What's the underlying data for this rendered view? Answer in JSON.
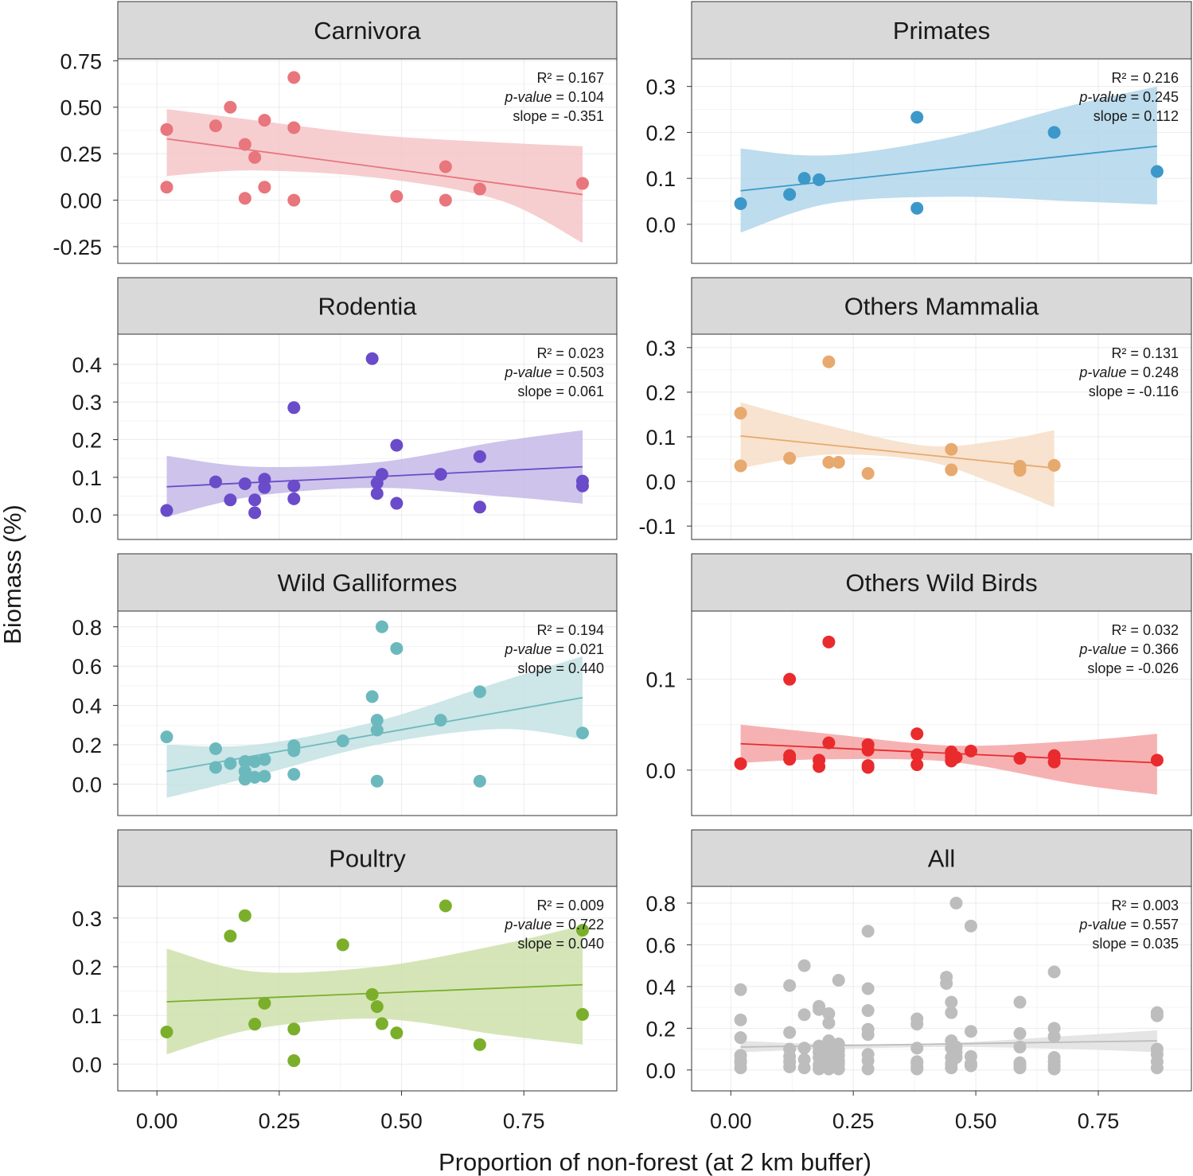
{
  "chart_data": {
    "type": "scatter",
    "xlabel": "Proportion of non-forest (at 2 km buffer)",
    "ylabel": "Biomass (%)",
    "xlim": [
      -0.08,
      0.94
    ],
    "xticks": [
      "0.00",
      "0.25",
      "0.50",
      "0.75"
    ],
    "stat_labels": {
      "r2": "R² = ",
      "pvalue": "p-value",
      "pvalue_eq": " = ",
      "slope": "slope = "
    },
    "panels": [
      {
        "title": "Carnivora",
        "color": "#E8767C",
        "ribbon": "#F4C6C8",
        "ylim": [
          -0.34,
          0.76
        ],
        "yticks": [
          "0.75",
          "0.50",
          "0.25",
          "0.00",
          "-0.25"
        ],
        "r2": "0.167",
        "pvalue": "0.104",
        "slope": "-0.351",
        "line": [
          [
            0.02,
            0.33
          ],
          [
            0.87,
            0.03
          ]
        ],
        "band": [
          [
            0.02,
            0.13,
            0.49
          ],
          [
            0.2,
            0.16,
            0.43
          ],
          [
            0.45,
            0.12,
            0.35
          ],
          [
            0.7,
            0.0,
            0.31
          ],
          [
            0.87,
            -0.23,
            0.29
          ]
        ],
        "x": [
          0.02,
          0.02,
          0.12,
          0.15,
          0.18,
          0.18,
          0.2,
          0.22,
          0.22,
          0.28,
          0.28,
          0.28,
          0.49,
          0.59,
          0.59,
          0.66,
          0.87
        ],
        "y": [
          0.38,
          0.07,
          0.4,
          0.5,
          0.3,
          0.01,
          0.23,
          0.43,
          0.07,
          0.66,
          0.39,
          0.0,
          0.02,
          0.18,
          0.0,
          0.06,
          0.09
        ]
      },
      {
        "title": "Primates",
        "color": "#3C98C9",
        "ribbon": "#B2D6EA",
        "ylim": [
          -0.085,
          0.36
        ],
        "yticks": [
          "0.3",
          "0.2",
          "0.1",
          "0.0"
        ],
        "r2": "0.216",
        "pvalue": "0.245",
        "slope": "0.112",
        "line": [
          [
            0.02,
            0.073
          ],
          [
            0.87,
            0.17
          ]
        ],
        "band": [
          [
            0.02,
            -0.018,
            0.165
          ],
          [
            0.2,
            0.045,
            0.15
          ],
          [
            0.45,
            0.06,
            0.19
          ],
          [
            0.7,
            0.05,
            0.26
          ],
          [
            0.87,
            0.043,
            0.3
          ]
        ],
        "x": [
          0.02,
          0.12,
          0.15,
          0.18,
          0.38,
          0.38,
          0.66,
          0.87
        ],
        "y": [
          0.045,
          0.065,
          0.1,
          0.097,
          0.233,
          0.035,
          0.2,
          0.115
        ]
      },
      {
        "title": "Rodentia",
        "color": "#6A4BC9",
        "ribbon": "#C6B9E8",
        "ylim": [
          -0.065,
          0.48
        ],
        "yticks": [
          "0.4",
          "0.3",
          "0.2",
          "0.1",
          "0.0"
        ],
        "r2": "0.023",
        "pvalue": "0.503",
        "slope": "0.061",
        "line": [
          [
            0.02,
            0.075
          ],
          [
            0.87,
            0.128
          ]
        ],
        "band": [
          [
            0.02,
            -0.005,
            0.157
          ],
          [
            0.2,
            0.05,
            0.128
          ],
          [
            0.45,
            0.072,
            0.14
          ],
          [
            0.7,
            0.05,
            0.195
          ],
          [
            0.87,
            0.03,
            0.225
          ]
        ],
        "x": [
          0.02,
          0.12,
          0.15,
          0.18,
          0.2,
          0.2,
          0.22,
          0.22,
          0.28,
          0.28,
          0.28,
          0.44,
          0.45,
          0.45,
          0.46,
          0.49,
          0.49,
          0.58,
          0.66,
          0.66,
          0.87,
          0.87
        ],
        "y": [
          0.012,
          0.088,
          0.04,
          0.083,
          0.04,
          0.006,
          0.095,
          0.073,
          0.285,
          0.077,
          0.043,
          0.415,
          0.085,
          0.057,
          0.108,
          0.185,
          0.031,
          0.108,
          0.155,
          0.021,
          0.09,
          0.077
        ]
      },
      {
        "title": "Others Mammalia",
        "color": "#E8A96E",
        "ribbon": "#F6DEC7",
        "ylim": [
          -0.13,
          0.33
        ],
        "yticks": [
          "0.3",
          "0.2",
          "0.1",
          "0.0",
          "-0.1"
        ],
        "r2": "0.131",
        "pvalue": "0.248",
        "slope": "-0.116",
        "line": [
          [
            0.02,
            0.102
          ],
          [
            0.66,
            0.03
          ]
        ],
        "band": [
          [
            0.02,
            0.03,
            0.177
          ],
          [
            0.2,
            0.06,
            0.125
          ],
          [
            0.4,
            0.045,
            0.08
          ],
          [
            0.55,
            -0.01,
            0.092
          ],
          [
            0.66,
            -0.058,
            0.115
          ]
        ],
        "x": [
          0.02,
          0.02,
          0.12,
          0.2,
          0.2,
          0.22,
          0.28,
          0.45,
          0.45,
          0.59,
          0.59,
          0.66
        ],
        "y": [
          0.153,
          0.035,
          0.052,
          0.268,
          0.043,
          0.043,
          0.018,
          0.072,
          0.026,
          0.034,
          0.025,
          0.036
        ]
      },
      {
        "title": "Wild Galliformes",
        "color": "#6CB9BD",
        "ribbon": "#C4E2E4",
        "ylim": [
          -0.16,
          0.88
        ],
        "yticks": [
          "0.8",
          "0.6",
          "0.4",
          "0.2",
          "0.0"
        ],
        "r2": "0.194",
        "pvalue": "0.021",
        "slope": "0.440",
        "line": [
          [
            0.02,
            0.065
          ],
          [
            0.87,
            0.44
          ]
        ],
        "band": [
          [
            0.02,
            -0.07,
            0.2
          ],
          [
            0.2,
            0.04,
            0.2
          ],
          [
            0.45,
            0.2,
            0.32
          ],
          [
            0.7,
            0.28,
            0.52
          ],
          [
            0.87,
            0.23,
            0.65
          ]
        ],
        "x": [
          0.02,
          0.12,
          0.12,
          0.15,
          0.18,
          0.18,
          0.18,
          0.2,
          0.2,
          0.22,
          0.22,
          0.28,
          0.28,
          0.28,
          0.38,
          0.44,
          0.45,
          0.45,
          0.45,
          0.46,
          0.49,
          0.58,
          0.66,
          0.66,
          0.87
        ],
        "y": [
          0.24,
          0.18,
          0.085,
          0.105,
          0.115,
          0.065,
          0.025,
          0.115,
          0.035,
          0.125,
          0.04,
          0.195,
          0.17,
          0.05,
          0.22,
          0.445,
          0.325,
          0.275,
          0.015,
          0.8,
          0.69,
          0.325,
          0.47,
          0.015,
          0.26
        ]
      },
      {
        "title": "Others Wild Birds",
        "color": "#E92B2E",
        "ribbon": "#F4A4A6",
        "ylim": [
          -0.05,
          0.175
        ],
        "yticks": [
          "0.1",
          "0.0"
        ],
        "r2": "0.032",
        "pvalue": "0.366",
        "slope": "-0.026",
        "line": [
          [
            0.02,
            0.029
          ],
          [
            0.87,
            0.008
          ]
        ],
        "band": [
          [
            0.02,
            0.008,
            0.05
          ],
          [
            0.2,
            0.012,
            0.04
          ],
          [
            0.45,
            0.009,
            0.027
          ],
          [
            0.7,
            -0.015,
            0.032
          ],
          [
            0.87,
            -0.027,
            0.04
          ]
        ],
        "x": [
          0.02,
          0.12,
          0.12,
          0.12,
          0.18,
          0.18,
          0.2,
          0.2,
          0.28,
          0.28,
          0.28,
          0.28,
          0.38,
          0.38,
          0.38,
          0.45,
          0.45,
          0.45,
          0.46,
          0.49,
          0.59,
          0.66,
          0.66,
          0.87
        ],
        "y": [
          0.007,
          0.1,
          0.016,
          0.012,
          0.011,
          0.004,
          0.141,
          0.03,
          0.028,
          0.022,
          0.005,
          0.003,
          0.04,
          0.017,
          0.006,
          0.02,
          0.015,
          0.01,
          0.014,
          0.021,
          0.013,
          0.016,
          0.009,
          0.011
        ]
      },
      {
        "title": "Poultry",
        "color": "#7BAF2B",
        "ribbon": "#CEE0AC",
        "ylim": [
          -0.055,
          0.365
        ],
        "yticks": [
          "0.3",
          "0.2",
          "0.1",
          "0.0"
        ],
        "r2": "0.009",
        "pvalue": "0.722",
        "slope": "0.040",
        "line": [
          [
            0.02,
            0.128
          ],
          [
            0.87,
            0.163
          ]
        ],
        "band": [
          [
            0.02,
            0.02,
            0.237
          ],
          [
            0.2,
            0.072,
            0.19
          ],
          [
            0.45,
            0.093,
            0.2
          ],
          [
            0.7,
            0.06,
            0.245
          ],
          [
            0.87,
            0.04,
            0.285
          ]
        ],
        "x": [
          0.02,
          0.15,
          0.18,
          0.2,
          0.22,
          0.28,
          0.28,
          0.38,
          0.44,
          0.45,
          0.46,
          0.49,
          0.59,
          0.66,
          0.87,
          0.87
        ],
        "y": [
          0.066,
          0.263,
          0.305,
          0.082,
          0.125,
          0.072,
          0.007,
          0.245,
          0.143,
          0.118,
          0.083,
          0.064,
          0.325,
          0.04,
          0.275,
          0.102
        ]
      },
      {
        "title": "All",
        "color": "#BDBDBD",
        "ribbon": "#E0E0E0",
        "ylim": [
          -0.1,
          0.88
        ],
        "yticks": [
          "0.8",
          "0.6",
          "0.4",
          "0.2",
          "0.0"
        ],
        "r2": "0.003",
        "pvalue": "0.557",
        "slope": "0.035",
        "line": [
          [
            0.02,
            0.11
          ],
          [
            0.87,
            0.14
          ]
        ],
        "band": [
          [
            0.02,
            0.085,
            0.14
          ],
          [
            0.2,
            0.1,
            0.125
          ],
          [
            0.45,
            0.11,
            0.13
          ],
          [
            0.7,
            0.1,
            0.165
          ],
          [
            0.87,
            0.085,
            0.19
          ]
        ],
        "x": [
          0.02,
          0.02,
          0.02,
          0.02,
          0.02,
          0.02,
          0.02,
          0.12,
          0.12,
          0.12,
          0.12,
          0.12,
          0.12,
          0.15,
          0.15,
          0.15,
          0.15,
          0.15,
          0.18,
          0.18,
          0.18,
          0.18,
          0.18,
          0.18,
          0.18,
          0.2,
          0.2,
          0.2,
          0.2,
          0.2,
          0.2,
          0.2,
          0.2,
          0.22,
          0.22,
          0.22,
          0.22,
          0.22,
          0.22,
          0.22,
          0.28,
          0.28,
          0.28,
          0.28,
          0.28,
          0.28,
          0.28,
          0.28,
          0.38,
          0.38,
          0.38,
          0.38,
          0.38,
          0.38,
          0.38,
          0.44,
          0.44,
          0.45,
          0.45,
          0.45,
          0.45,
          0.45,
          0.45,
          0.45,
          0.46,
          0.46,
          0.46,
          0.46,
          0.49,
          0.49,
          0.49,
          0.49,
          0.49,
          0.59,
          0.59,
          0.59,
          0.59,
          0.59,
          0.59,
          0.66,
          0.66,
          0.66,
          0.66,
          0.66,
          0.66,
          0.66,
          0.87,
          0.87,
          0.87,
          0.87,
          0.87,
          0.87
        ],
        "y": [
          0.385,
          0.24,
          0.155,
          0.07,
          0.045,
          0.035,
          0.01,
          0.405,
          0.18,
          0.1,
          0.065,
          0.04,
          0.015,
          0.5,
          0.265,
          0.105,
          0.05,
          0.01,
          0.305,
          0.29,
          0.115,
          0.085,
          0.06,
          0.025,
          0.005,
          0.27,
          0.225,
          0.14,
          0.115,
          0.08,
          0.04,
          0.03,
          0.005,
          0.43,
          0.125,
          0.095,
          0.07,
          0.045,
          0.03,
          0.005,
          0.665,
          0.39,
          0.285,
          0.195,
          0.17,
          0.075,
          0.045,
          0.005,
          0.245,
          0.22,
          0.105,
          0.04,
          0.035,
          0.015,
          0.005,
          0.445,
          0.415,
          0.325,
          0.275,
          0.14,
          0.105,
          0.06,
          0.03,
          0.01,
          0.8,
          0.11,
          0.085,
          0.06,
          0.69,
          0.185,
          0.065,
          0.03,
          0.02,
          0.325,
          0.175,
          0.11,
          0.035,
          0.025,
          0.01,
          0.47,
          0.2,
          0.16,
          0.06,
          0.04,
          0.02,
          0.005,
          0.275,
          0.26,
          0.1,
          0.075,
          0.04,
          0.01
        ]
      }
    ]
  }
}
